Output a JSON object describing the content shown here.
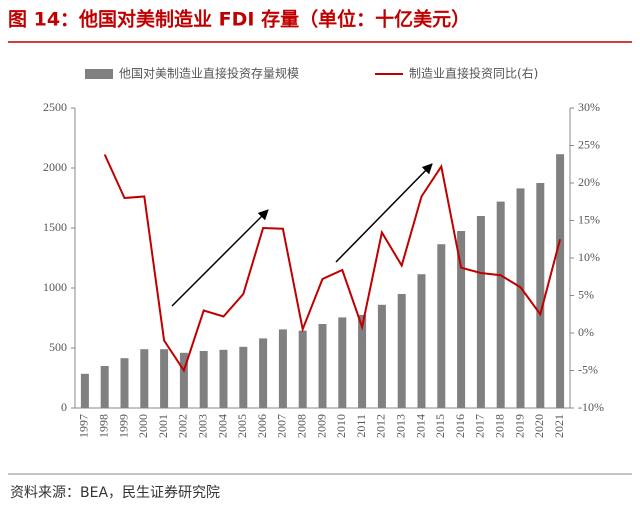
{
  "chart_data": {
    "type": "bar_line",
    "title": "图 14：他国对美制造业 FDI 存量（单位：十亿美元）",
    "source": "资料来源：BEA，民生证券研究院",
    "categories": [
      "1997",
      "1998",
      "1999",
      "2000",
      "2001",
      "2002",
      "2003",
      "2004",
      "2005",
      "2006",
      "2007",
      "2008",
      "2009",
      "2010",
      "2011",
      "2012",
      "2013",
      "2014",
      "2015",
      "2016",
      "2017",
      "2018",
      "2019",
      "2020",
      "2021"
    ],
    "series": [
      {
        "name": "他国对美制造业直接投资存量规模",
        "type": "bar",
        "color": "#808080",
        "values": [
          285,
          350,
          415,
          490,
          490,
          460,
          475,
          485,
          510,
          580,
          655,
          645,
          700,
          755,
          775,
          860,
          950,
          1115,
          1365,
          1475,
          1600,
          1720,
          1830,
          1875,
          2115
        ]
      },
      {
        "name": "制造业直接投资同比(右)",
        "type": "line",
        "axis": "y2",
        "color": "#c00000",
        "values": [
          null,
          23.8,
          18,
          18.2,
          -1,
          -5,
          3,
          2.2,
          5.2,
          14,
          13.9,
          0.5,
          7.2,
          8.4,
          0.8,
          13.4,
          9,
          18.2,
          22.2,
          8.7,
          8,
          7.7,
          6.1,
          2.5,
          12.5
        ]
      }
    ],
    "ylim": [
      0,
      2500
    ],
    "yticks": [
      0,
      500,
      1000,
      1500,
      2000,
      2500
    ],
    "y2lim": [
      -10,
      30
    ],
    "y2ticks": [
      {
        "value": -10,
        "label": "-10%"
      },
      {
        "value": -5,
        "label": "-5%"
      },
      {
        "value": 0,
        "label": "0%"
      },
      {
        "value": 5,
        "label": "5%"
      },
      {
        "value": 10,
        "label": "10%"
      },
      {
        "value": 15,
        "label": "15%"
      },
      {
        "value": 20,
        "label": "20%"
      },
      {
        "value": 25,
        "label": "25%"
      },
      {
        "value": 30,
        "label": "30%"
      }
    ]
  }
}
